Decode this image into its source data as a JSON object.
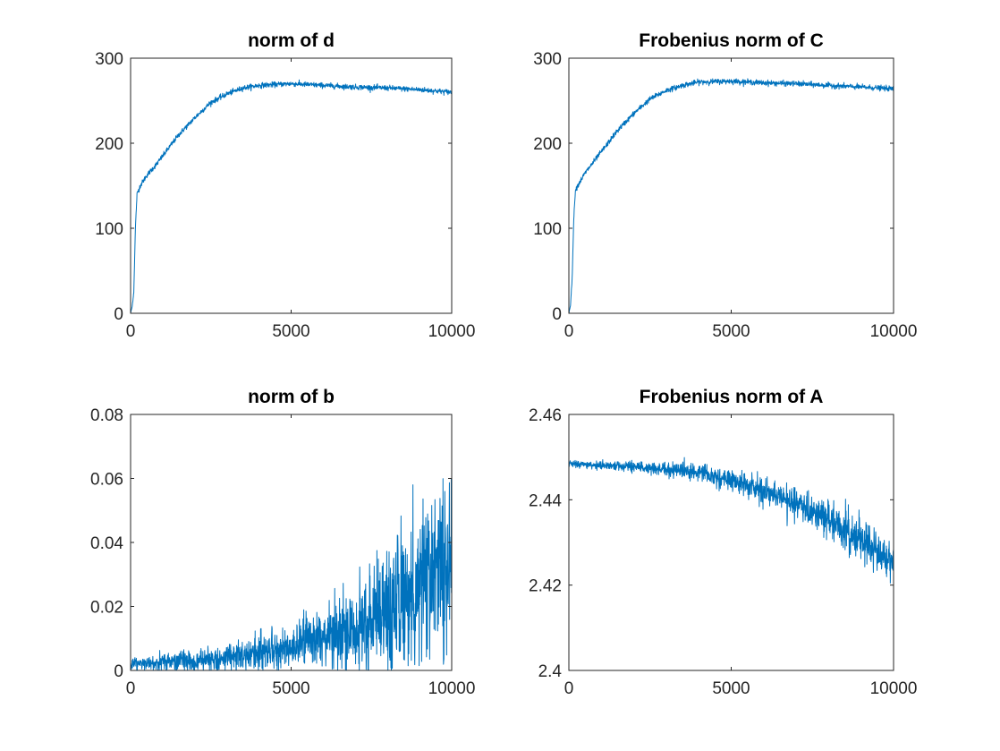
{
  "chart_data": [
    {
      "type": "line",
      "title": "norm of d",
      "xlim": [
        0,
        10000
      ],
      "ylim": [
        0,
        300
      ],
      "xticks": [
        0,
        5000,
        10000
      ],
      "yticks": [
        0,
        100,
        200,
        300
      ],
      "xtick_labels": [
        "0",
        "5000",
        "10000"
      ],
      "ytick_labels": [
        "0",
        "100",
        "200",
        "300"
      ],
      "grid": false,
      "color": "#0072BD",
      "noise": 2.5,
      "x": [
        0,
        50,
        100,
        150,
        200,
        300,
        500,
        800,
        1000,
        1500,
        2000,
        2500,
        3000,
        3500,
        4000,
        5000,
        6000,
        7000,
        8000,
        9000,
        10000
      ],
      "values": [
        0,
        8,
        25,
        100,
        140,
        150,
        162,
        175,
        185,
        210,
        230,
        248,
        258,
        265,
        268,
        270,
        268,
        266,
        265,
        263,
        260
      ]
    },
    {
      "type": "line",
      "title": "Frobenius norm of C",
      "xlim": [
        0,
        10000
      ],
      "ylim": [
        0,
        300
      ],
      "xticks": [
        0,
        5000,
        10000
      ],
      "yticks": [
        0,
        100,
        200,
        300
      ],
      "xtick_labels": [
        "0",
        "5000",
        "10000"
      ],
      "ytick_labels": [
        "0",
        "100",
        "200",
        "300"
      ],
      "grid": false,
      "color": "#0072BD",
      "noise": 2.5,
      "x": [
        0,
        50,
        100,
        150,
        200,
        300,
        500,
        800,
        1000,
        1500,
        2000,
        2500,
        3000,
        3500,
        4000,
        5000,
        6000,
        7000,
        8000,
        9000,
        10000
      ],
      "values": [
        0,
        10,
        40,
        110,
        145,
        152,
        165,
        180,
        190,
        215,
        235,
        252,
        262,
        268,
        272,
        273,
        271,
        270,
        268,
        266,
        264
      ]
    },
    {
      "type": "line",
      "title": "norm of b",
      "xlim": [
        0,
        10000
      ],
      "ylim": [
        0,
        0.08
      ],
      "xticks": [
        0,
        5000,
        10000
      ],
      "yticks": [
        0,
        0.02,
        0.04,
        0.06,
        0.08
      ],
      "xtick_labels": [
        "0",
        "5000",
        "10000"
      ],
      "ytick_labels": [
        "0",
        "0.02",
        "0.04",
        "0.06",
        "0.08"
      ],
      "grid": false,
      "color": "#0072BD",
      "x": [
        0,
        1000,
        2000,
        3000,
        4000,
        5000,
        6000,
        7000,
        8000,
        9000,
        10000
      ],
      "values": [
        0.002,
        0.0025,
        0.003,
        0.004,
        0.0055,
        0.0075,
        0.01,
        0.0135,
        0.018,
        0.025,
        0.034
      ],
      "spread": [
        0.0015,
        0.002,
        0.0025,
        0.003,
        0.004,
        0.005,
        0.007,
        0.01,
        0.013,
        0.018,
        0.025
      ]
    },
    {
      "type": "line",
      "title": "Frobenius norm of A",
      "xlim": [
        0,
        10000
      ],
      "ylim": [
        2.4,
        2.46
      ],
      "xticks": [
        0,
        5000,
        10000
      ],
      "yticks": [
        2.4,
        2.42,
        2.44,
        2.46
      ],
      "xtick_labels": [
        "0",
        "5000",
        "10000"
      ],
      "ytick_labels": [
        "2.4",
        "2.42",
        "2.44",
        "2.46"
      ],
      "grid": false,
      "color": "#0072BD",
      "x": [
        0,
        1000,
        2000,
        3000,
        4000,
        5000,
        6000,
        7000,
        8000,
        9000,
        10000
      ],
      "values": [
        2.4485,
        2.448,
        2.4478,
        2.4472,
        2.4465,
        2.4445,
        2.442,
        2.439,
        2.4355,
        2.431,
        2.4245
      ],
      "spread": [
        0.0006,
        0.0007,
        0.0009,
        0.0012,
        0.0015,
        0.0018,
        0.0022,
        0.0026,
        0.003,
        0.0035,
        0.004
      ]
    }
  ]
}
